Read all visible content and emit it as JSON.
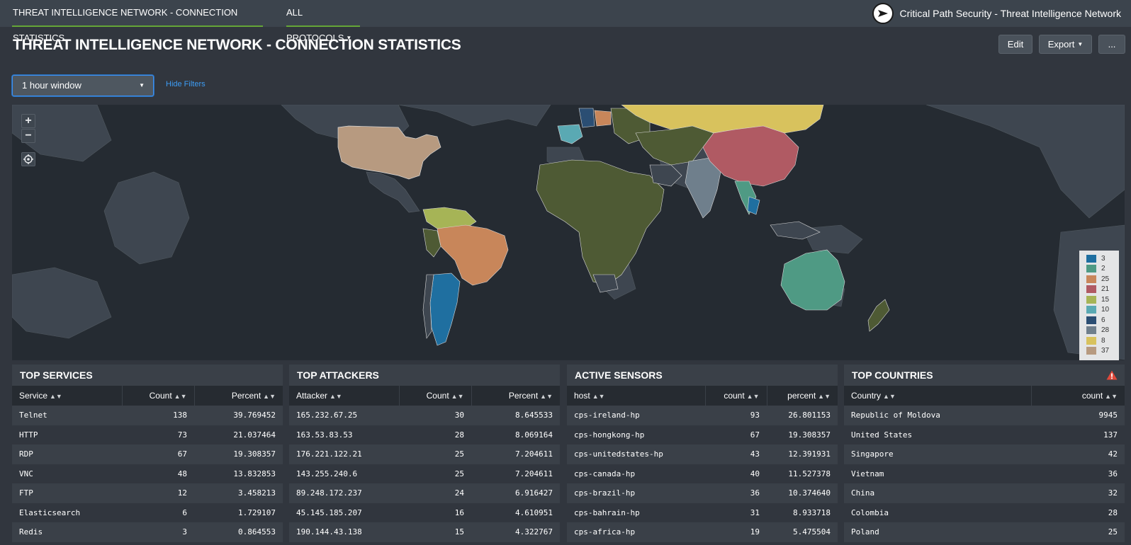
{
  "nav": {
    "tab_dashboard": "THREAT INTELLIGENCE NETWORK - CONNECTION STATISTICS",
    "tab_protocols": "ALL PROTOCOLS",
    "brand_title": "Critical Path Security - Threat Intelligence Network",
    "logo_icon": "critical-path-security-logo"
  },
  "header": {
    "title": "THREAT INTELLIGENCE NETWORK - CONNECTION STATISTICS",
    "edit_label": "Edit",
    "export_label": "Export",
    "more_label": "..."
  },
  "filters": {
    "time_window": "1 hour window",
    "hide_filters": "Hide Filters"
  },
  "map": {
    "zoom_in": "+",
    "zoom_out": "−",
    "legend": [
      {
        "label": "3",
        "color": "#1f6fa0"
      },
      {
        "label": "2",
        "color": "#4f9a84"
      },
      {
        "label": "25",
        "color": "#c8865a"
      },
      {
        "label": "21",
        "color": "#b05a63"
      },
      {
        "label": "15",
        "color": "#a6b456"
      },
      {
        "label": "10",
        "color": "#5aa9b3"
      },
      {
        "label": "6",
        "color": "#2b4e73"
      },
      {
        "label": "28",
        "color": "#6f7f8c"
      },
      {
        "label": "8",
        "color": "#d8c25d"
      },
      {
        "label": "37",
        "color": "#b79a80"
      }
    ]
  },
  "top_services": {
    "title": "TOP SERVICES",
    "columns": [
      "Service",
      "Count",
      "Percent"
    ],
    "rows": [
      [
        "Telnet",
        "138",
        "39.769452"
      ],
      [
        "HTTP",
        "73",
        "21.037464"
      ],
      [
        "RDP",
        "67",
        "19.308357"
      ],
      [
        "VNC",
        "48",
        "13.832853"
      ],
      [
        "FTP",
        "12",
        "3.458213"
      ],
      [
        "Elasticsearch",
        "6",
        "1.729107"
      ],
      [
        "Redis",
        "3",
        "0.864553"
      ]
    ]
  },
  "top_attackers": {
    "title": "TOP ATTACKERS",
    "columns": [
      "Attacker",
      "Count",
      "Percent"
    ],
    "rows": [
      [
        "165.232.67.25",
        "30",
        "8.645533"
      ],
      [
        "163.53.83.53",
        "28",
        "8.069164"
      ],
      [
        "176.221.122.21",
        "25",
        "7.204611"
      ],
      [
        "143.255.240.6",
        "25",
        "7.204611"
      ],
      [
        "89.248.172.237",
        "24",
        "6.916427"
      ],
      [
        "45.145.185.207",
        "16",
        "4.610951"
      ],
      [
        "190.144.43.138",
        "15",
        "4.322767"
      ]
    ]
  },
  "active_sensors": {
    "title": "ACTIVE SENSORS",
    "columns": [
      "host",
      "count",
      "percent"
    ],
    "rows": [
      [
        "cps-ireland-hp",
        "93",
        "26.801153"
      ],
      [
        "cps-hongkong-hp",
        "67",
        "19.308357"
      ],
      [
        "cps-unitedstates-hp",
        "43",
        "12.391931"
      ],
      [
        "cps-canada-hp",
        "40",
        "11.527378"
      ],
      [
        "cps-brazil-hp",
        "36",
        "10.374640"
      ],
      [
        "cps-bahrain-hp",
        "31",
        "8.933718"
      ],
      [
        "cps-africa-hp",
        "19",
        "5.475504"
      ]
    ]
  },
  "top_countries": {
    "title": "TOP COUNTRIES",
    "alert_icon": "warning-triangle-icon",
    "columns": [
      "Country",
      "count"
    ],
    "rows": [
      [
        "Republic of Moldova",
        "9945"
      ],
      [
        "United States",
        "137"
      ],
      [
        "Singapore",
        "42"
      ],
      [
        "Vietnam",
        "36"
      ],
      [
        "China",
        "32"
      ],
      [
        "Colombia",
        "28"
      ],
      [
        "Poland",
        "25"
      ]
    ]
  }
}
